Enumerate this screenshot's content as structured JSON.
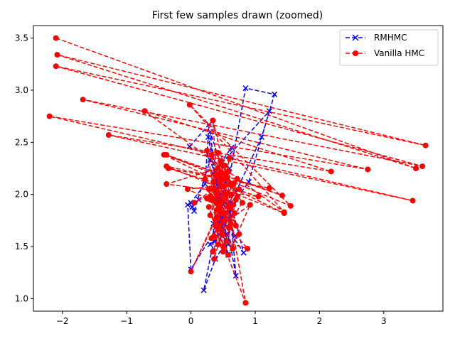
{
  "chart_data": {
    "type": "line",
    "title": "First few samples drawn (zoomed)",
    "xlabel": "",
    "ylabel": "",
    "xlim": [
      -2.45,
      3.92
    ],
    "ylim": [
      0.88,
      3.62
    ],
    "xticks": [
      -2,
      -1,
      0,
      1,
      2,
      3
    ],
    "xtick_labels": [
      "−2",
      "−1",
      "0",
      "1",
      "2",
      "3"
    ],
    "yticks": [
      1.0,
      1.5,
      2.0,
      2.5,
      3.0,
      3.5
    ],
    "ytick_labels": [
      "1.0",
      "1.5",
      "2.0",
      "2.5",
      "3.0",
      "3.5"
    ],
    "grid": false,
    "legend_position": "top-right",
    "series": [
      {
        "name": "RMHMC",
        "color": "#0000ff",
        "marker": "x",
        "linestyle": "dashed",
        "points": [
          [
            -0.02,
            2.46
          ],
          [
            0.28,
            2.67
          ],
          [
            0.22,
            2.1
          ],
          [
            0.0,
            1.92
          ],
          [
            0.05,
            1.84
          ],
          [
            0.3,
            2.33
          ],
          [
            0.42,
            2.1
          ],
          [
            0.55,
            1.55
          ],
          [
            0.38,
            1.38
          ],
          [
            0.2,
            1.08
          ],
          [
            0.45,
            1.85
          ],
          [
            0.63,
            2.45
          ],
          [
            0.35,
            2.2
          ],
          [
            0.5,
            1.9
          ],
          [
            0.7,
            1.22
          ],
          [
            0.58,
            2.1
          ],
          [
            0.85,
            3.02
          ],
          [
            1.3,
            2.96
          ],
          [
            1.1,
            2.55
          ],
          [
            0.72,
            2.05
          ],
          [
            0.42,
            1.75
          ],
          [
            0.55,
            1.62
          ],
          [
            0.3,
            1.52
          ],
          [
            0.6,
            2.25
          ],
          [
            0.48,
            2.3
          ],
          [
            1.22,
            2.8
          ],
          [
            0.9,
            2.12
          ],
          [
            0.38,
            1.68
          ],
          [
            0.62,
            1.92
          ],
          [
            0.82,
            1.44
          ],
          [
            0.52,
            1.72
          ],
          [
            0.27,
            2.55
          ],
          [
            0.68,
            1.6
          ],
          [
            0.45,
            2.02
          ],
          [
            0.4,
            1.95
          ],
          [
            0.58,
            1.42
          ],
          [
            0.35,
            1.72
          ],
          [
            0.5,
            1.8
          ],
          [
            0.42,
            1.98
          ],
          [
            0.3,
            2.6
          ],
          [
            0.52,
            2.18
          ],
          [
            0.47,
            1.64
          ],
          [
            0.36,
            1.55
          ],
          [
            0.62,
            1.85
          ],
          [
            0.58,
            1.52
          ],
          [
            0.5,
            1.78
          ],
          [
            0.0,
            1.28
          ],
          [
            -0.05,
            1.9
          ],
          [
            0.12,
            1.95
          ],
          [
            0.02,
            1.88
          ]
        ]
      },
      {
        "name": "Vanilla HMC",
        "color": "#ff0000",
        "marker": "o",
        "linestyle": "dashed",
        "points": [
          [
            -2.1,
            3.5
          ],
          [
            3.5,
            2.25
          ],
          [
            -2.08,
            3.34
          ],
          [
            3.65,
            2.47
          ],
          [
            -2.1,
            3.23
          ],
          [
            3.6,
            2.27
          ],
          [
            -1.68,
            2.91
          ],
          [
            2.75,
            2.24
          ],
          [
            -2.2,
            2.75
          ],
          [
            3.45,
            1.94
          ],
          [
            -1.28,
            2.57
          ],
          [
            2.18,
            2.22
          ],
          [
            -0.72,
            2.8
          ],
          [
            1.45,
            1.83
          ],
          [
            -0.02,
            2.86
          ],
          [
            1.55,
            1.89
          ],
          [
            -0.38,
            2.38
          ],
          [
            1.42,
            1.99
          ],
          [
            -0.42,
            2.38
          ],
          [
            1.45,
            1.82
          ],
          [
            -0.38,
            2.27
          ],
          [
            1.22,
            2.06
          ],
          [
            -0.35,
            2.25
          ],
          [
            1.05,
            1.98
          ],
          [
            -0.38,
            2.1
          ],
          [
            0.42,
            2.25
          ],
          [
            0.55,
            2.18
          ],
          [
            0.3,
            1.95
          ],
          [
            0.5,
            1.82
          ],
          [
            0.35,
            2.12
          ],
          [
            0.48,
            1.65
          ],
          [
            0.32,
            2.38
          ],
          [
            0.6,
            2.1
          ],
          [
            0.4,
            1.92
          ],
          [
            0.55,
            2.02
          ],
          [
            0.36,
            1.6
          ],
          [
            0.44,
            2.15
          ],
          [
            0.62,
            1.72
          ],
          [
            0.28,
            2.05
          ],
          [
            0.52,
            2.28
          ],
          [
            0.7,
            1.95
          ],
          [
            0.42,
            1.52
          ],
          [
            0.34,
            1.45
          ],
          [
            0.58,
            1.88
          ],
          [
            0.45,
            2.2
          ],
          [
            0.75,
            1.62
          ],
          [
            0.5,
            2.08
          ],
          [
            0.38,
            1.7
          ],
          [
            0.65,
            1.48
          ],
          [
            0.4,
            2.0
          ],
          [
            0.55,
            1.55
          ],
          [
            0.3,
            1.8
          ],
          [
            0.6,
            2.35
          ],
          [
            0.48,
            1.95
          ],
          [
            0.36,
            1.38
          ],
          [
            0.72,
            2.15
          ],
          [
            0.52,
            1.75
          ],
          [
            0.42,
            2.4
          ],
          [
            0.66,
            1.9
          ],
          [
            0.32,
            1.58
          ],
          [
            0.88,
            1.48
          ],
          [
            0.6,
            1.68
          ],
          [
            0.45,
            2.12
          ],
          [
            0.75,
            2.05
          ],
          [
            0.4,
            1.85
          ],
          [
            0.58,
            2.22
          ],
          [
            0.35,
            1.95
          ],
          [
            0.5,
            1.5
          ],
          [
            0.68,
            1.82
          ],
          [
            0.42,
            2.02
          ],
          [
            0.34,
            2.71
          ],
          [
            0.56,
            2.15
          ],
          [
            0.8,
            1.92
          ],
          [
            0.48,
            1.62
          ],
          [
            0.25,
            2.42
          ],
          [
            0.62,
            2.0
          ],
          [
            0.38,
            2.18
          ],
          [
            0.7,
            1.7
          ],
          [
            0.46,
            1.9
          ],
          [
            0.22,
            2.15
          ],
          [
            0.58,
            1.42
          ],
          [
            0.92,
            1.9
          ],
          [
            0.42,
            1.68
          ],
          [
            0.3,
            1.98
          ],
          [
            0.52,
            2.08
          ],
          [
            0.05,
            1.92
          ],
          [
            0.35,
            2.05
          ],
          [
            0.6,
            1.88
          ],
          [
            0.46,
            2.32
          ],
          [
            0.72,
            1.98
          ],
          [
            0.5,
            1.45
          ],
          [
            0.28,
            1.88
          ],
          [
            0.85,
            0.96
          ],
          [
            0.55,
            2.0
          ],
          [
            0.0,
            1.26
          ],
          [
            0.4,
            1.78
          ],
          [
            0.66,
            2.1
          ],
          [
            -0.05,
            2.05
          ],
          [
            0.25,
            1.96
          ],
          [
            0.45,
            2.18
          ]
        ]
      }
    ]
  }
}
